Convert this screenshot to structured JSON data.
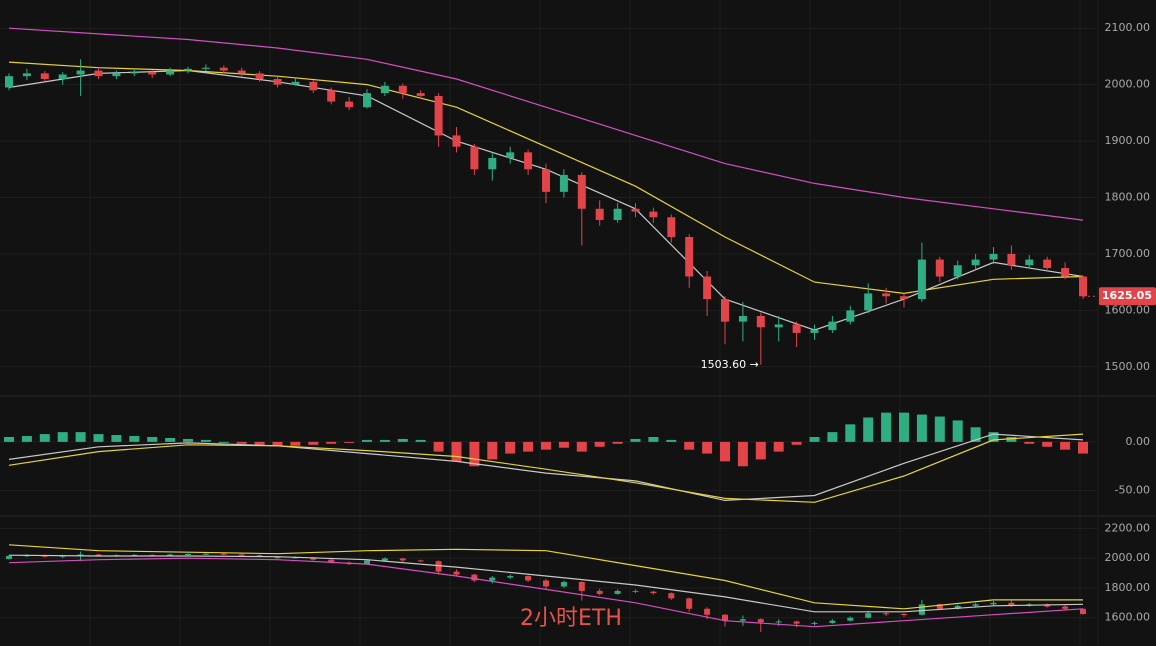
{
  "chart_data": [
    {
      "type": "candlestick",
      "up_color": "#2fae84",
      "down_color": "#e2444a",
      "grid": true,
      "ylim": [
        1450,
        2150
      ],
      "yticks": [
        {
          "value": 2100,
          "label": "2100.00"
        },
        {
          "value": 2000,
          "label": "2000.00"
        },
        {
          "value": 1900,
          "label": "1900.00"
        },
        {
          "value": 1800,
          "label": "1800.00"
        },
        {
          "value": 1700,
          "label": "1700.00"
        },
        {
          "value": 1600,
          "label": "1600.00"
        },
        {
          "value": 1500,
          "label": "1500.00"
        }
      ],
      "candles": [
        [
          1995,
          2020,
          1990,
          2015
        ],
        [
          2015,
          2028,
          2008,
          2020
        ],
        [
          2020,
          2024,
          2005,
          2010
        ],
        [
          2010,
          2022,
          2000,
          2018
        ],
        [
          2018,
          2045,
          1980,
          2025
        ],
        [
          2025,
          2030,
          2010,
          2015
        ],
        [
          2015,
          2025,
          2010,
          2020
        ],
        [
          2020,
          2028,
          2015,
          2022
        ],
        [
          2022,
          2026,
          2012,
          2018
        ],
        [
          2018,
          2030,
          2015,
          2025
        ],
        [
          2025,
          2032,
          2020,
          2028
        ],
        [
          2028,
          2036,
          2024,
          2030
        ],
        [
          2030,
          2034,
          2020,
          2025
        ],
        [
          2025,
          2030,
          2015,
          2020
        ],
        [
          2020,
          2024,
          2005,
          2010
        ],
        [
          2010,
          2015,
          1995,
          2000
        ],
        [
          2000,
          2012,
          1998,
          2005
        ],
        [
          2005,
          2008,
          1985,
          1990
        ],
        [
          1990,
          1995,
          1965,
          1970
        ],
        [
          1970,
          1978,
          1955,
          1960
        ],
        [
          1960,
          1992,
          1958,
          1985
        ],
        [
          1985,
          2005,
          1980,
          1998
        ],
        [
          1998,
          2002,
          1975,
          1985
        ],
        [
          1985,
          1990,
          1975,
          1980
        ],
        [
          1980,
          1985,
          1890,
          1910
        ],
        [
          1910,
          1925,
          1880,
          1890
        ],
        [
          1890,
          1895,
          1840,
          1850
        ],
        [
          1850,
          1880,
          1830,
          1870
        ],
        [
          1870,
          1890,
          1860,
          1880
        ],
        [
          1880,
          1885,
          1840,
          1850
        ],
        [
          1850,
          1860,
          1790,
          1810
        ],
        [
          1810,
          1850,
          1800,
          1840
        ],
        [
          1840,
          1845,
          1715,
          1780
        ],
        [
          1780,
          1795,
          1750,
          1760
        ],
        [
          1760,
          1790,
          1755,
          1780
        ],
        [
          1780,
          1790,
          1765,
          1775
        ],
        [
          1775,
          1782,
          1755,
          1765
        ],
        [
          1765,
          1770,
          1720,
          1730
        ],
        [
          1730,
          1735,
          1640,
          1660
        ],
        [
          1660,
          1670,
          1590,
          1620
        ],
        [
          1620,
          1625,
          1540,
          1580
        ],
        [
          1580,
          1615,
          1545,
          1590
        ],
        [
          1590,
          1596,
          1503.6,
          1570
        ],
        [
          1570,
          1590,
          1545,
          1575
        ],
        [
          1575,
          1580,
          1535,
          1560
        ],
        [
          1560,
          1575,
          1548,
          1565
        ],
        [
          1565,
          1590,
          1560,
          1580
        ],
        [
          1580,
          1608,
          1575,
          1600
        ],
        [
          1600,
          1648,
          1595,
          1630
        ],
        [
          1630,
          1640,
          1612,
          1625
        ],
        [
          1625,
          1630,
          1605,
          1620
        ],
        [
          1620,
          1720,
          1615,
          1690
        ],
        [
          1690,
          1695,
          1650,
          1660
        ],
        [
          1660,
          1688,
          1655,
          1680
        ],
        [
          1680,
          1700,
          1672,
          1690
        ],
        [
          1690,
          1712,
          1682,
          1700
        ],
        [
          1700,
          1715,
          1672,
          1680
        ],
        [
          1680,
          1698,
          1675,
          1690
        ],
        [
          1690,
          1695,
          1668,
          1675
        ],
        [
          1675,
          1685,
          1655,
          1660
        ],
        [
          1660,
          1662,
          1620,
          1625.05
        ]
      ],
      "x": [
        0,
        5,
        10,
        15,
        20,
        25,
        30,
        35,
        40,
        45,
        50,
        55,
        60
      ],
      "lines": [
        {
          "color": "#c8c8c8",
          "values": [
            1995,
            2020,
            2025,
            2005,
            1980,
            1900,
            1850,
            1780,
            1620,
            1565,
            1620,
            1685,
            1660
          ]
        },
        {
          "color": "#e6d23a",
          "values": [
            2040,
            2030,
            2025,
            2015,
            2000,
            1960,
            1890,
            1820,
            1730,
            1650,
            1630,
            1655,
            1660
          ]
        },
        {
          "color": "#d54fc0",
          "values": [
            2100,
            2090,
            2080,
            2065,
            2045,
            2010,
            1960,
            1910,
            1860,
            1825,
            1800,
            1780,
            1760
          ]
        }
      ],
      "last_price": 1625.05,
      "low_annotation": {
        "value": 1503.6,
        "label": "1503.60 →"
      }
    },
    {
      "type": "macd",
      "ylim": [
        -75,
        45
      ],
      "yticks": [
        {
          "value": 0,
          "label": "0.00"
        },
        {
          "value": -50,
          "label": "-50.00"
        }
      ],
      "histogram": [
        5,
        6,
        8,
        10,
        10,
        8,
        7,
        6,
        5,
        4,
        3,
        2,
        0,
        -2,
        -3,
        -4,
        -4,
        -3,
        -2,
        -1,
        2,
        2,
        3,
        2,
        -10,
        -20,
        -25,
        -18,
        -12,
        -10,
        -8,
        -6,
        -10,
        -5,
        -2,
        3,
        5,
        2,
        -8,
        -12,
        -20,
        -25,
        -18,
        -10,
        -3,
        5,
        10,
        18,
        25,
        30,
        30,
        28,
        26,
        22,
        15,
        10,
        5,
        -2,
        -5,
        -8,
        -12
      ],
      "x": [
        0,
        5,
        10,
        15,
        20,
        25,
        30,
        35,
        40,
        45,
        50,
        55,
        60
      ],
      "lines": [
        {
          "color": "#c8c8c8",
          "values": [
            -18,
            -5,
            -1,
            -4,
            -12,
            -20,
            -32,
            -40,
            -60,
            -55,
            -22,
            8,
            2
          ]
        },
        {
          "color": "#e6d23a",
          "values": [
            -24,
            -10,
            -3,
            -4,
            -9,
            -15,
            -28,
            -42,
            -58,
            -62,
            -35,
            2,
            8
          ]
        }
      ]
    },
    {
      "type": "bands",
      "ylim": [
        1410,
        2270
      ],
      "yticks": [
        {
          "value": 2200,
          "label": "2200.00"
        },
        {
          "value": 2000,
          "label": "2000.00"
        },
        {
          "value": 1800,
          "label": "1800.00"
        },
        {
          "value": 1600,
          "label": "1600.00"
        }
      ],
      "x": [
        0,
        5,
        10,
        15,
        20,
        25,
        30,
        35,
        40,
        45,
        50,
        55,
        60
      ],
      "lines": [
        {
          "color": "#e6d23a",
          "values": [
            2090,
            2050,
            2040,
            2030,
            2050,
            2060,
            2050,
            1950,
            1850,
            1700,
            1660,
            1720,
            1720
          ]
        },
        {
          "color": "#c8c8c8",
          "values": [
            2020,
            2015,
            2015,
            2010,
            1990,
            1940,
            1880,
            1820,
            1740,
            1640,
            1640,
            1680,
            1690
          ]
        },
        {
          "color": "#d54fc0",
          "values": [
            1970,
            1990,
            2000,
            1990,
            1960,
            1880,
            1790,
            1700,
            1580,
            1540,
            1580,
            1620,
            1660
          ]
        }
      ],
      "watermark": "2小时ETH"
    }
  ]
}
